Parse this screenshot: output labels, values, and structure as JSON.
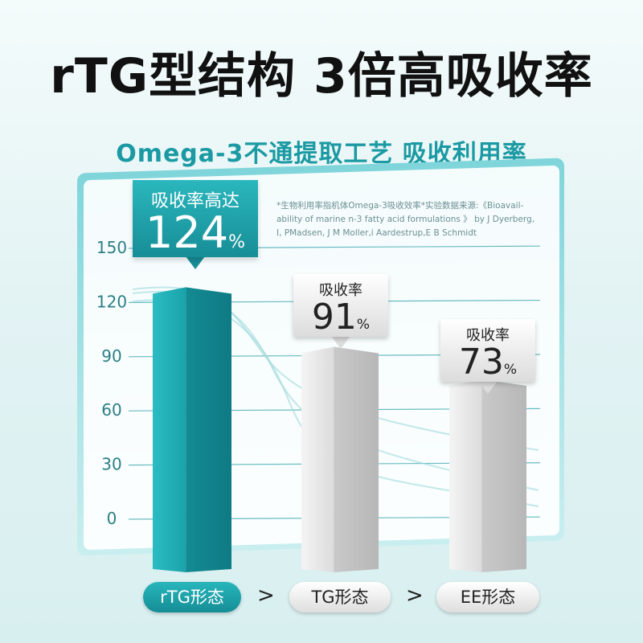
{
  "header": {
    "title": "rTG型结构 3倍高吸收率",
    "subtitle": "Omega-3不通提取工艺 吸收利用率"
  },
  "note": "*生物利用率指机体Omega-3吸收效率*实验数据来源:《Bioavail-ability of marine n-3 fatty acid formulations 》 by J Dyerberg, I, PMadsen, J M Moller,i Aardestrup,E B Schmidt",
  "colors": {
    "teal": "#1a9ea6",
    "grey": "#d9d9d9"
  },
  "chart_data": {
    "type": "bar",
    "categories": [
      "rTG形态",
      "TG形态",
      "EE形态"
    ],
    "values": [
      124,
      91,
      73
    ],
    "value_labels": [
      {
        "label": "吸收率高达",
        "value": "124",
        "unit": "%"
      },
      {
        "label": "吸收率",
        "value": "91",
        "unit": "%"
      },
      {
        "label": "吸收率",
        "value": "73",
        "unit": "%"
      }
    ],
    "yticks": [
      "150",
      "120",
      "90",
      "60",
      "30",
      "0"
    ],
    "ylim": [
      0,
      150
    ],
    "grid": true,
    "separator": ">"
  }
}
